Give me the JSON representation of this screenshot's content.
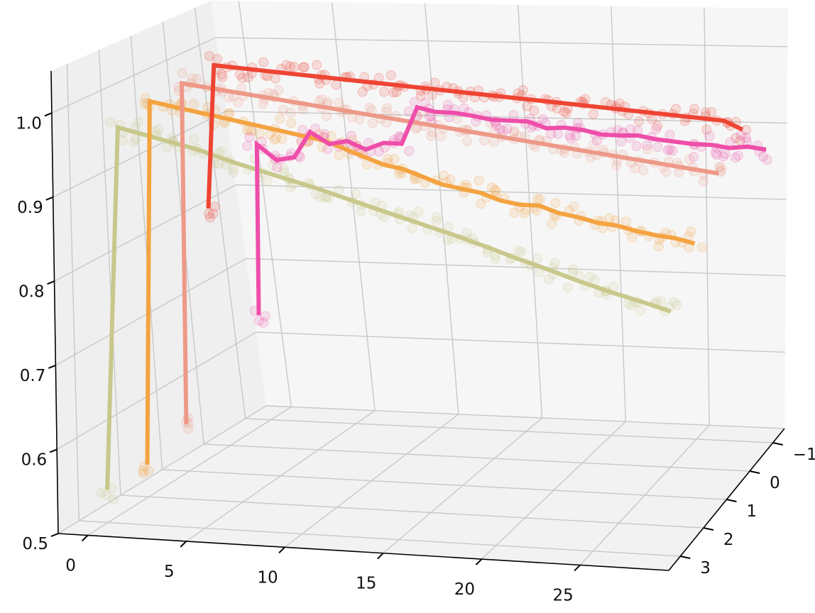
{
  "chart_data": {
    "type": "line",
    "title": "",
    "xlabel": "",
    "ylabel": "",
    "zlabel": "",
    "x_ticks": [
      "0",
      "5",
      "10",
      "15",
      "20",
      "25"
    ],
    "y_ticks": [
      "−1",
      "0",
      "1",
      "2",
      "3"
    ],
    "z_ticks": [
      "0.5",
      "0.6",
      "0.7",
      "0.8",
      "0.9",
      "1.0"
    ],
    "xlim": [
      -1.5,
      29.5
    ],
    "ylim": [
      -1.5,
      3.5
    ],
    "zlim": [
      0.5,
      1.05
    ],
    "grid": true,
    "scatter_alpha": 0.15,
    "series": [
      {
        "color": "#ee4433",
        "y": 0,
        "values": [
          0.81,
          1.0,
          1.0,
          1.0,
          1.0,
          1.0,
          1.0,
          1.0,
          1.0,
          1.0,
          1.0,
          1.0,
          1.0,
          1.0,
          1.0,
          1.0,
          1.0,
          1.0,
          1.0,
          1.0,
          1.0,
          1.0,
          1.0,
          1.0,
          1.0,
          1.0,
          1.0,
          1.0,
          1.0,
          0.99
        ]
      },
      {
        "color": "#ee9988",
        "y": 1,
        "values": [
          0.56,
          1.0,
          1.0,
          1.0,
          1.0,
          1.0,
          1.0,
          1.0,
          1.0,
          1.0,
          1.0,
          1.0,
          1.0,
          1.0,
          1.0,
          1.0,
          1.0,
          1.0,
          1.0,
          1.0,
          1.0,
          1.0,
          1.0,
          1.0,
          1.0,
          1.0,
          1.0,
          1.0,
          1.0,
          1.0
        ]
      },
      {
        "color": "#f4a341",
        "y": 2,
        "values": [
          0.54,
          1.0,
          1.0,
          1.0,
          1.0,
          1.0,
          1.0,
          1.0,
          1.0,
          1.0,
          1.0,
          0.995,
          0.99,
          0.985,
          0.985,
          0.98,
          0.975,
          0.975,
          0.975,
          0.97,
          0.97,
          0.975,
          0.97,
          0.97,
          0.968,
          0.97,
          0.968,
          0.968,
          0.97,
          0.968
        ]
      },
      {
        "color": "#c8c88c",
        "y": 3,
        "values": [
          0.54,
          0.99,
          0.99,
          0.99,
          0.99,
          0.99,
          0.988,
          0.986,
          0.985,
          0.984,
          0.983,
          0.982,
          0.98,
          0.978,
          0.976,
          0.974,
          0.972,
          0.97,
          0.968,
          0.965,
          0.962,
          0.958,
          0.955,
          0.952,
          0.948,
          0.945,
          0.942,
          0.94,
          0.938,
          0.935
        ]
      },
      {
        "color": "#ee4ea9",
        "y": -1,
        "values": [
          0.64,
          0.87,
          0.85,
          0.855,
          0.89,
          0.875,
          0.88,
          0.87,
          0.88,
          0.88,
          0.93,
          0.925,
          0.925,
          0.922,
          0.918,
          0.918,
          0.918,
          0.91,
          0.912,
          0.91,
          0.905,
          0.905,
          0.906,
          0.902,
          0.9,
          0.898,
          0.898,
          0.895,
          0.898,
          0.895
        ]
      }
    ]
  }
}
